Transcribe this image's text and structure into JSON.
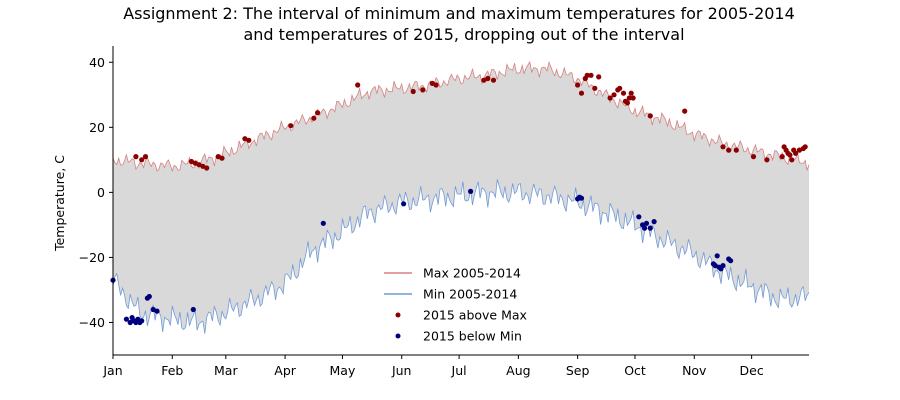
{
  "chart_data": {
    "type": "line",
    "title": [
      "Assignment 2: The interval of minimum and maximum temperatures for 2005-2014",
      "and temperatures of 2015, dropping out of the interval"
    ],
    "xlabel": "",
    "ylabel": "Temperature, C",
    "xlim": [
      1,
      365
    ],
    "ylim": [
      -50,
      45
    ],
    "yticks": [
      -40,
      -20,
      0,
      20,
      40
    ],
    "month_ticks": [
      {
        "label": "Jan",
        "day": 1
      },
      {
        "label": "Feb",
        "day": 32
      },
      {
        "label": "Mar",
        "day": 60
      },
      {
        "label": "Apr",
        "day": 91
      },
      {
        "label": "May",
        "day": 121
      },
      {
        "label": "Jun",
        "day": 152
      },
      {
        "label": "Jul",
        "day": 182
      },
      {
        "label": "Aug",
        "day": 213
      },
      {
        "label": "Sep",
        "day": 244
      },
      {
        "label": "Oct",
        "day": 274
      },
      {
        "label": "Nov",
        "day": 305
      },
      {
        "label": "Dec",
        "day": 335
      }
    ],
    "fill_color": "#d9d9d9",
    "legend_position": "lower center",
    "series": [
      {
        "name": "Max 2005-2014",
        "kind": "line",
        "color": "#d98080",
        "x": [
          1,
          15,
          32,
          45,
          60,
          75,
          91,
          105,
          121,
          135,
          152,
          166,
          182,
          196,
          213,
          228,
          244,
          258,
          274,
          290,
          305,
          320,
          335,
          350,
          365
        ],
        "y": [
          10,
          9,
          8,
          9,
          12,
          16,
          20,
          23,
          27,
          31,
          32,
          33,
          35,
          36,
          38,
          38,
          35,
          30,
          25,
          22,
          18,
          15,
          13,
          11,
          9
        ]
      },
      {
        "name": "Min 2005-2014",
        "kind": "line",
        "color": "#6f9bd9",
        "x": [
          1,
          15,
          32,
          45,
          60,
          75,
          91,
          105,
          121,
          135,
          152,
          166,
          182,
          196,
          213,
          228,
          244,
          258,
          274,
          290,
          305,
          320,
          335,
          350,
          365
        ],
        "y": [
          -27,
          -37,
          -39,
          -40,
          -37,
          -33,
          -28,
          -18,
          -12,
          -6,
          -3,
          -2,
          -1,
          0,
          0,
          -1,
          -3,
          -6,
          -10,
          -15,
          -19,
          -25,
          -29,
          -33,
          -32
        ]
      },
      {
        "name": "2015 above Max",
        "kind": "scatter",
        "color": "#8b0000",
        "x": [
          13,
          16,
          18,
          42,
          44,
          46,
          48,
          50,
          56,
          58,
          70,
          72,
          94,
          106,
          108,
          129,
          158,
          163,
          168,
          170,
          195,
          197,
          200,
          244,
          246,
          248,
          249,
          251,
          253,
          255,
          261,
          263,
          265,
          266,
          268,
          269,
          270,
          271,
          272,
          273,
          282,
          300,
          320,
          323,
          327,
          336,
          343,
          351,
          352,
          353,
          354,
          355,
          356,
          357,
          358,
          360,
          362,
          363
        ],
        "y": [
          11,
          10,
          11,
          9.5,
          9,
          8.5,
          8,
          7.5,
          11,
          10.5,
          16.5,
          16,
          20.5,
          22.8,
          24.5,
          33,
          31,
          31.5,
          33.5,
          33,
          34.5,
          35,
          34.5,
          33,
          30.5,
          35,
          36,
          36,
          32,
          35.5,
          29,
          30,
          31.5,
          32,
          30.5,
          28,
          27.5,
          29,
          30.5,
          29,
          23.5,
          25,
          14,
          13,
          13,
          11,
          10,
          11,
          14,
          13,
          12,
          11.5,
          10,
          13,
          12,
          13,
          13.5,
          14
        ]
      },
      {
        "name": "2015 below Min",
        "kind": "scatter",
        "color": "#00007f",
        "x": [
          1,
          8,
          10,
          11,
          12,
          13,
          14,
          15,
          16,
          19,
          20,
          22,
          24,
          43,
          111,
          153,
          188,
          244,
          245,
          246,
          276,
          278,
          279,
          280,
          282,
          284,
          315,
          316,
          317,
          318,
          319,
          320,
          323,
          324
        ],
        "y": [
          -27,
          -39,
          -40,
          -38.5,
          -39.5,
          -40,
          -39,
          -40,
          -39.5,
          -32.5,
          -32,
          -36,
          -36.5,
          -36,
          -9.5,
          -3.5,
          0.3,
          -2,
          -1.5,
          -1.8,
          -7.5,
          -10,
          -11,
          -9.5,
          -11,
          -9,
          -22,
          -22.5,
          -19.5,
          -23,
          -23.5,
          -22.5,
          -20.5,
          -21
        ]
      }
    ]
  }
}
